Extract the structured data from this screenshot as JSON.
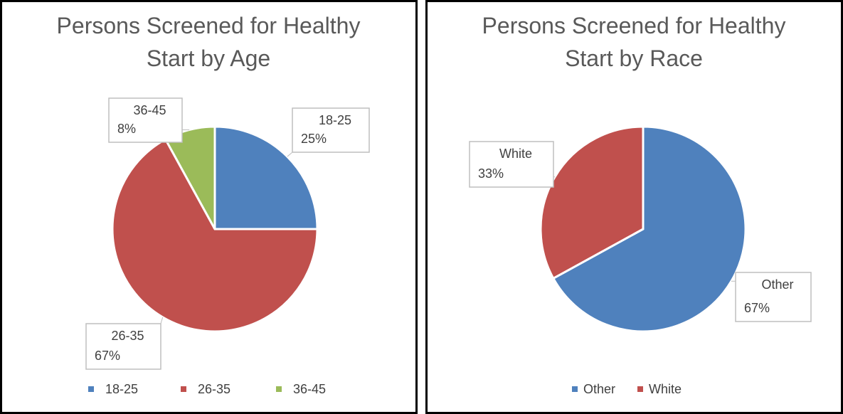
{
  "chart_data": [
    {
      "type": "pie",
      "title": "Persons Screened for Healthy Start by Age",
      "categories": [
        "18-25",
        "26-35",
        "36-45"
      ],
      "values": [
        25,
        67,
        8
      ],
      "value_labels": [
        "25%",
        "67%",
        "8%"
      ],
      "colors": [
        "#4f81bd",
        "#c0504d",
        "#9bbb59"
      ],
      "legend": "bottom"
    },
    {
      "type": "pie",
      "title": "Persons Screened for Healthy Start by Race",
      "categories": [
        "Other",
        "White"
      ],
      "values": [
        67,
        33
      ],
      "value_labels": [
        "67%",
        "33%"
      ],
      "colors": [
        "#4f81bd",
        "#c0504d"
      ],
      "legend": "bottom"
    }
  ]
}
